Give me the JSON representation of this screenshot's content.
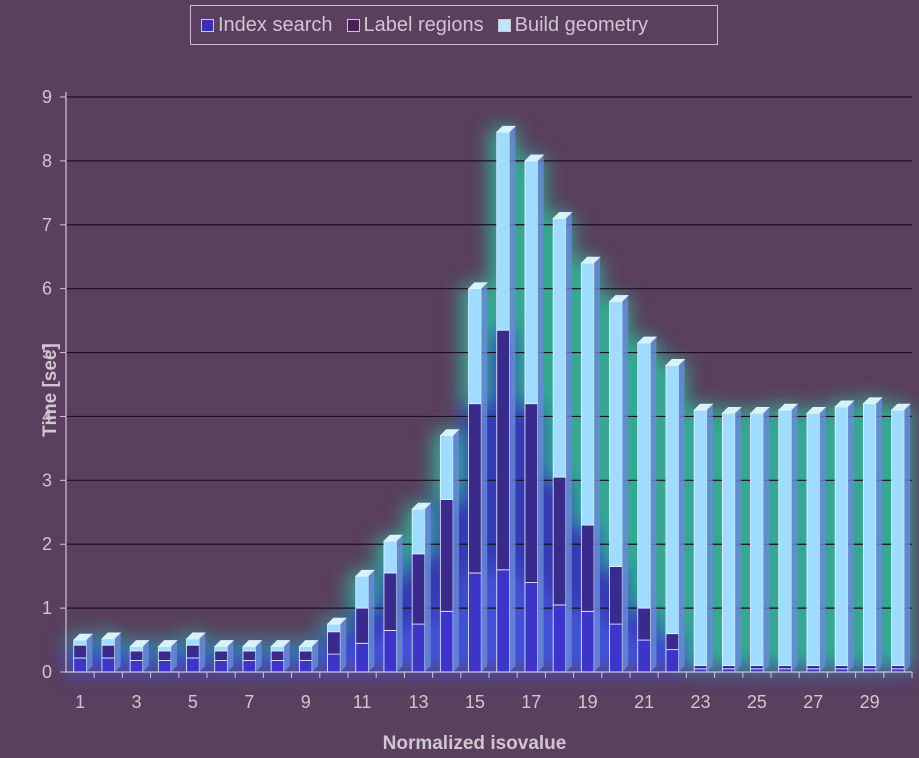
{
  "legend": {
    "items": [
      {
        "label": "Index search",
        "color": "#3b2fb8"
      },
      {
        "label": "Label regions",
        "color": "#4a1f5a"
      },
      {
        "label": "Build geometry",
        "color": "#bfe6ff"
      }
    ]
  },
  "chart_data": {
    "type": "bar",
    "stacked": true,
    "xlabel": "Normalized isovalue",
    "ylabel": "Time [sec]",
    "ylim": [
      0,
      9
    ],
    "yticks": [
      0,
      1,
      2,
      3,
      4,
      5,
      6,
      7,
      8,
      9
    ],
    "categories": [
      1,
      2,
      3,
      4,
      5,
      6,
      7,
      8,
      9,
      10,
      11,
      12,
      13,
      14,
      15,
      16,
      17,
      18,
      19,
      20,
      21,
      22,
      23,
      24,
      25,
      26,
      27,
      28,
      29,
      30
    ],
    "xtick_labels": [
      "1",
      "3",
      "5",
      "7",
      "9",
      "11",
      "13",
      "15",
      "17",
      "19",
      "21",
      "23",
      "25",
      "27",
      "29"
    ],
    "series": [
      {
        "name": "Index search",
        "values": [
          0.22,
          0.22,
          0.18,
          0.18,
          0.22,
          0.18,
          0.18,
          0.18,
          0.18,
          0.28,
          0.45,
          0.65,
          0.75,
          0.95,
          1.55,
          1.6,
          1.4,
          1.05,
          0.95,
          0.75,
          0.5,
          0.35,
          0.05,
          0.05,
          0.05,
          0.05,
          0.05,
          0.05,
          0.05,
          0.05
        ]
      },
      {
        "name": "Label regions",
        "values": [
          0.2,
          0.2,
          0.15,
          0.15,
          0.2,
          0.15,
          0.15,
          0.15,
          0.15,
          0.35,
          0.55,
          0.9,
          1.1,
          1.75,
          2.65,
          3.75,
          2.8,
          2.0,
          1.35,
          0.9,
          0.5,
          0.25,
          0.05,
          0.05,
          0.05,
          0.05,
          0.05,
          0.05,
          0.05,
          0.05
        ]
      },
      {
        "name": "Build geometry",
        "values": [
          0.08,
          0.1,
          0.07,
          0.07,
          0.1,
          0.07,
          0.07,
          0.07,
          0.07,
          0.12,
          0.5,
          0.5,
          0.7,
          1.0,
          1.8,
          3.1,
          3.8,
          4.05,
          4.1,
          4.15,
          4.15,
          4.2,
          4.0,
          3.95,
          3.95,
          4.0,
          3.95,
          4.05,
          4.1,
          4.0
        ]
      }
    ]
  }
}
